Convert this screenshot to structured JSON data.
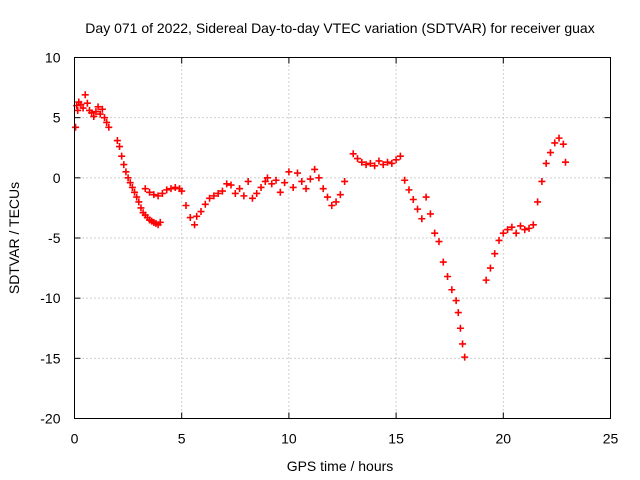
{
  "chart_data": {
    "type": "scatter",
    "title": "Day 071 of 2022, Sidereal Day-to-day VTEC variation (SDTVAR) for receiver guax",
    "xlabel": "GPS time / hours",
    "ylabel": "SDTVAR / TECUs",
    "xlim": [
      0,
      25
    ],
    "ylim": [
      -20,
      10
    ],
    "xticks": [
      0,
      5,
      10,
      15,
      20,
      25
    ],
    "yticks": [
      -20,
      -15,
      -10,
      -5,
      0,
      5,
      10
    ],
    "xtick_labels": [
      "0",
      "5",
      "10",
      "15",
      "20",
      "25"
    ],
    "ytick_labels": [
      "-20",
      "-15",
      "-10",
      "-5",
      "0",
      "5",
      "10"
    ],
    "grid": true,
    "marker": "+",
    "colors": {
      "series": "#ff0000",
      "grid": "#a0a0a0",
      "frame": "#000000"
    },
    "series": [
      {
        "name": "SDTVAR guax",
        "x": [
          0.05,
          0.1,
          0.15,
          0.2,
          0.3,
          0.4,
          0.5,
          0.6,
          0.7,
          0.8,
          0.9,
          1.0,
          1.1,
          1.2,
          1.3,
          1.4,
          1.5,
          1.6,
          2.0,
          2.1,
          2.2,
          2.3,
          2.4,
          2.5,
          2.6,
          2.7,
          2.8,
          2.9,
          3.0,
          3.1,
          3.2,
          3.3,
          3.4,
          3.5,
          3.6,
          3.7,
          3.8,
          3.9,
          4.0,
          3.3,
          3.5,
          3.7,
          3.9,
          4.1,
          4.3,
          4.5,
          4.7,
          4.9,
          5.0,
          5.2,
          5.4,
          5.6,
          5.7,
          5.9,
          6.1,
          6.3,
          6.5,
          6.7,
          6.9,
          7.1,
          7.3,
          7.5,
          7.7,
          7.9,
          8.1,
          8.3,
          8.5,
          8.7,
          8.9,
          9.0,
          9.2,
          9.4,
          9.6,
          9.8,
          10.0,
          10.2,
          10.4,
          10.6,
          10.8,
          11.0,
          11.2,
          11.4,
          11.6,
          11.8,
          12.0,
          12.2,
          12.4,
          12.6,
          13.0,
          13.2,
          13.4,
          13.6,
          13.8,
          14.0,
          14.2,
          14.4,
          14.6,
          14.8,
          15.0,
          15.2,
          15.4,
          15.6,
          15.8,
          16.0,
          16.2,
          16.4,
          16.6,
          16.8,
          17.0,
          17.2,
          17.4,
          17.6,
          17.8,
          17.9,
          18.0,
          18.1,
          18.2,
          19.2,
          19.4,
          19.6,
          19.8,
          20.0,
          20.2,
          20.4,
          20.6,
          20.8,
          21.0,
          21.2,
          21.4,
          21.6,
          21.8,
          22.0,
          22.2,
          22.4,
          22.6,
          22.8,
          22.9
        ],
        "y": [
          4.2,
          6.0,
          5.6,
          6.3,
          6.1,
          5.8,
          6.9,
          6.2,
          5.6,
          5.4,
          5.1,
          5.5,
          5.9,
          5.3,
          5.7,
          5.0,
          4.6,
          4.2,
          3.1,
          2.6,
          1.8,
          1.1,
          0.5,
          0.0,
          -0.4,
          -0.8,
          -1.2,
          -1.6,
          -2.0,
          -2.5,
          -2.9,
          -3.1,
          -3.3,
          -3.5,
          -3.6,
          -3.7,
          -3.8,
          -3.9,
          -3.7,
          -0.9,
          -1.2,
          -1.4,
          -1.5,
          -1.3,
          -1.0,
          -0.9,
          -0.8,
          -0.9,
          -1.1,
          -2.3,
          -3.3,
          -3.9,
          -3.2,
          -2.8,
          -2.2,
          -1.7,
          -1.5,
          -1.3,
          -1.1,
          -0.5,
          -0.6,
          -1.3,
          -0.9,
          -1.5,
          -0.3,
          -1.7,
          -1.3,
          -0.8,
          -0.3,
          0.0,
          -0.5,
          -0.2,
          -1.2,
          -0.4,
          0.5,
          -0.8,
          0.4,
          -0.3,
          -0.9,
          -0.1,
          0.7,
          0.0,
          -0.9,
          -1.6,
          -2.3,
          -2.0,
          -1.4,
          -0.3,
          2.0,
          1.6,
          1.3,
          1.1,
          1.2,
          1.0,
          1.4,
          1.1,
          1.3,
          1.2,
          1.5,
          1.8,
          -0.2,
          -1.0,
          -1.8,
          -2.6,
          -3.4,
          -1.6,
          -3.0,
          -4.6,
          -5.3,
          -7.0,
          -8.2,
          -9.3,
          -10.2,
          -11.2,
          -12.5,
          -13.8,
          -14.9,
          -8.5,
          -7.5,
          -6.3,
          -5.2,
          -4.6,
          -4.3,
          -4.1,
          -4.6,
          -4.0,
          -4.3,
          -4.2,
          -3.9,
          -2.0,
          -0.3,
          1.2,
          2.1,
          2.9,
          3.3,
          2.8,
          1.3
        ]
      }
    ]
  }
}
